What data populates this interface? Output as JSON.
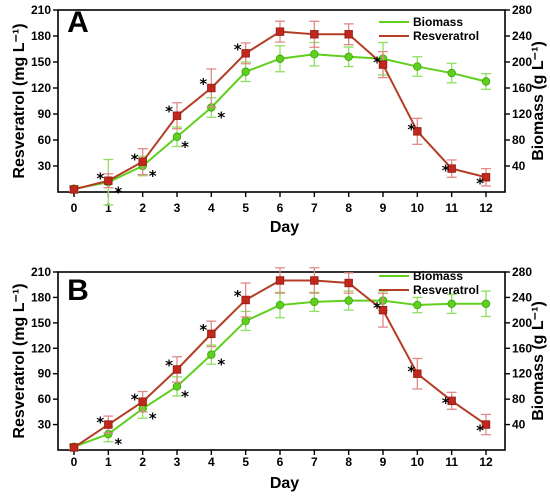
{
  "chart_data": [
    {
      "type": "line",
      "panel_label": "A",
      "xlabel": "Day",
      "ylabel_left": "Resveratrol (mg L⁻¹)",
      "ylabel_right": "Biomass  (g L⁻¹)",
      "x": [
        0,
        1,
        2,
        3,
        4,
        5,
        6,
        7,
        8,
        9,
        10,
        11,
        12
      ],
      "xlim": [
        0,
        12
      ],
      "ylim_left": [
        0,
        210
      ],
      "yticks_left": [
        30,
        60,
        90,
        120,
        150,
        180,
        210
      ],
      "ylim_right": [
        0,
        280
      ],
      "yticks_right": [
        40,
        80,
        120,
        160,
        200,
        240,
        280
      ],
      "legend_position": "top-right",
      "series": [
        {
          "name": "Biomass",
          "axis": "right",
          "color": "#5fd01e",
          "values": [
            5,
            15,
            40,
            85,
            130,
            185,
            205,
            212,
            208,
            205,
            193,
            183,
            170
          ],
          "errors": [
            4,
            35,
            15,
            15,
            15,
            15,
            20,
            18,
            15,
            25,
            15,
            15,
            12
          ],
          "significant": [
            false,
            true,
            true,
            true,
            true,
            false,
            false,
            false,
            false,
            false,
            false,
            false,
            false
          ]
        },
        {
          "name": "Resveratrol",
          "axis": "left",
          "color": "#b43d26",
          "values": [
            3,
            13,
            35,
            88,
            120,
            160,
            185,
            182,
            182,
            147,
            70,
            27,
            17
          ],
          "errors": [
            2,
            8,
            15,
            15,
            22,
            12,
            12,
            15,
            12,
            15,
            15,
            10,
            10
          ],
          "significant": [
            false,
            true,
            true,
            true,
            true,
            true,
            false,
            false,
            false,
            true,
            true,
            true,
            true
          ]
        }
      ]
    },
    {
      "type": "line",
      "panel_label": "B",
      "xlabel": "Day",
      "ylabel_left": "Resveratrol (mg L⁻¹)",
      "ylabel_right": "Biomass  (g L⁻¹)",
      "x": [
        0,
        1,
        2,
        3,
        4,
        5,
        6,
        7,
        8,
        9,
        10,
        11,
        12
      ],
      "xlim": [
        0,
        12
      ],
      "ylim_left": [
        0,
        210
      ],
      "yticks_left": [
        30,
        60,
        90,
        120,
        150,
        180,
        210
      ],
      "ylim_right": [
        0,
        280
      ],
      "yticks_right": [
        40,
        80,
        120,
        160,
        200,
        240,
        280
      ],
      "legend_position": "top-right",
      "series": [
        {
          "name": "Biomass",
          "axis": "right",
          "color": "#5fd01e",
          "values": [
            5,
            25,
            65,
            100,
            150,
            203,
            228,
            233,
            235,
            235,
            228,
            230,
            230
          ],
          "errors": [
            4,
            12,
            15,
            15,
            15,
            15,
            20,
            15,
            15,
            15,
            12,
            15,
            20
          ],
          "significant": [
            false,
            true,
            true,
            true,
            true,
            false,
            false,
            false,
            false,
            false,
            false,
            false,
            false
          ]
        },
        {
          "name": "Resveratrol",
          "axis": "left",
          "color": "#b43d26",
          "values": [
            3,
            30,
            57,
            95,
            137,
            177,
            200,
            200,
            197,
            165,
            90,
            58,
            30
          ],
          "errors": [
            2,
            10,
            12,
            15,
            15,
            20,
            15,
            15,
            12,
            20,
            18,
            10,
            12
          ],
          "significant": [
            false,
            true,
            true,
            true,
            true,
            true,
            false,
            false,
            false,
            true,
            true,
            true,
            true
          ]
        }
      ]
    }
  ]
}
